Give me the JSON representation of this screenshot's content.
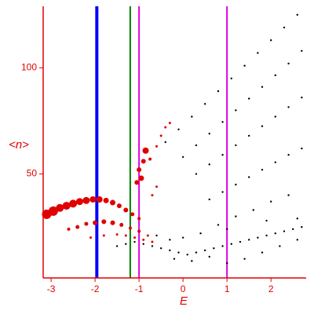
{
  "chart_data": {
    "type": "scatter",
    "xlabel": "E",
    "ylabel": "<n>",
    "xlim": [
      -3.18,
      2.8
    ],
    "ylim": [
      1,
      129
    ],
    "xticks": [
      -3,
      -2,
      -1,
      0,
      1,
      2
    ],
    "yticks": [
      50,
      100
    ],
    "axis_color": "#e00000",
    "vlines": [
      {
        "x": -1.96,
        "color": "#0000ff"
      },
      {
        "x": -1.2,
        "color": "#008000"
      },
      {
        "x": -1.0,
        "color": "#e000e0"
      },
      {
        "x": 1.0,
        "color": "#e000e0"
      }
    ],
    "series": [
      {
        "color": "#e00000",
        "x": [
          -3.1,
          -2.95,
          -2.8,
          -2.65,
          -2.5,
          -2.35,
          -2.2,
          -2.05,
          -1.9,
          -1.75,
          -1.6,
          -1.45,
          -1.3,
          -1.15,
          -1.0,
          -2.6,
          -2.4,
          -2.2,
          -2.0,
          -1.8,
          -1.6,
          -1.4,
          -1.2,
          -1.0,
          -0.8,
          -2.1,
          -1.8,
          -1.5,
          -1.3,
          -1.1,
          -0.9,
          -0.7,
          -1.05,
          -1.0,
          -0.95,
          -0.85,
          -0.9,
          -0.75,
          -0.6,
          -0.5,
          -0.4,
          -0.3,
          -0.6,
          -0.7
        ],
        "values": [
          31,
          32.5,
          34,
          35,
          36,
          37,
          37.5,
          38,
          38,
          37.5,
          36.5,
          35,
          33,
          31,
          29,
          24,
          25,
          26.5,
          27,
          27.5,
          27,
          26,
          24.5,
          23,
          21,
          20,
          21,
          21.5,
          21,
          20,
          19,
          18,
          46,
          52,
          48,
          61,
          56,
          57,
          63,
          68,
          72,
          74,
          44,
          40
        ],
        "sizes": [
          6,
          6,
          5,
          5,
          5,
          4.5,
          4.5,
          4,
          4,
          3.5,
          3.5,
          3,
          3,
          2.5,
          2,
          2,
          2.5,
          2.5,
          3,
          3,
          3,
          2.5,
          2,
          2,
          1.5,
          1.5,
          1.5,
          1.5,
          1.5,
          1.5,
          1.5,
          1.5,
          3,
          3,
          3.5,
          4,
          3,
          2,
          1.5,
          1.5,
          1.5,
          1.5,
          1.5,
          1.5
        ]
      },
      {
        "color": "#000000",
        "size": 1.2,
        "x": [
          -0.4,
          -0.1,
          0.2,
          0.5,
          0.8,
          1.1,
          1.4,
          1.7,
          2.0,
          2.3,
          2.6,
          0,
          0.3,
          0.6,
          0.9,
          1.2,
          1.5,
          1.8,
          2.1,
          2.4,
          2.7,
          0.3,
          0.6,
          0.9,
          1.2,
          1.5,
          1.8,
          2.1,
          2.4,
          2.7,
          0.6,
          0.9,
          1.2,
          1.5,
          1.8,
          2.1,
          2.4,
          2.7,
          -1.5,
          -1.3,
          -1.1,
          -0.9,
          -0.7,
          -0.5,
          -0.3,
          -0.1,
          0.1,
          0.3,
          0.5,
          0.7,
          0.9,
          1.1,
          1.3,
          1.5,
          1.7,
          1.9,
          2.1,
          2.3,
          2.5,
          2.7,
          -0.2,
          0.2,
          0.6,
          1.0,
          1.4,
          1.8,
          2.2,
          2.6,
          0.4,
          0.8,
          1.2,
          1.6,
          2.0,
          2.4,
          2.6,
          1.9,
          1.0,
          -0.6,
          -0.3,
          0.0
        ],
        "values": [
          65,
          71,
          77,
          83,
          89,
          95,
          101,
          107,
          113,
          119,
          125,
          58,
          63.5,
          69,
          74.5,
          80,
          85.5,
          91,
          96.5,
          102,
          108,
          50,
          54.5,
          59,
          63.5,
          68,
          72.5,
          77,
          81.5,
          86,
          38,
          41.5,
          45,
          48.5,
          52,
          55.5,
          59,
          62,
          16,
          17,
          18,
          17,
          16,
          15,
          14,
          13,
          12,
          13,
          14,
          15,
          16,
          17,
          18,
          19,
          20,
          21,
          22,
          23,
          24,
          25,
          10,
          9,
          11,
          8,
          10,
          13,
          16,
          19,
          22,
          26,
          30,
          33,
          37,
          40,
          29,
          28,
          24,
          21,
          19,
          20
        ]
      }
    ]
  }
}
